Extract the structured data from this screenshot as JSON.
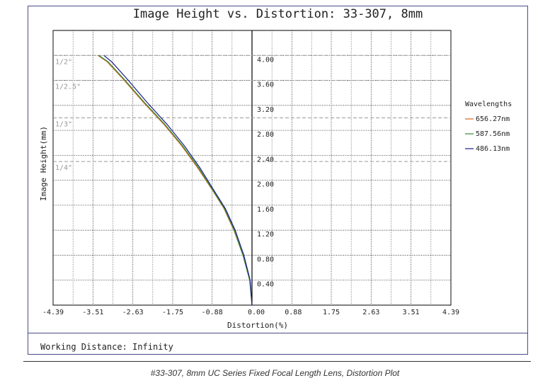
{
  "chart_data": {
    "type": "line",
    "title": "Image Height vs. Distortion: 33-307, 8mm",
    "xlabel": "Distortion(%)",
    "ylabel": "Image Height(mm)",
    "xlim": [
      -4.39,
      4.39
    ],
    "ylim": [
      0,
      4.4
    ],
    "x_ticks": [
      "-4.39",
      "-3.51",
      "-2.63",
      "-1.75",
      "-0.88",
      "0.00",
      "0.88",
      "1.75",
      "2.63",
      "3.51",
      "4.39"
    ],
    "y_ticks": [
      "4.00",
      "3.60",
      "3.20",
      "2.80",
      "2.40",
      "2.00",
      "1.60",
      "1.20",
      "0.80",
      "0.40"
    ],
    "y_tick_values": [
      4.0,
      3.6,
      3.2,
      2.8,
      2.4,
      2.0,
      1.6,
      1.2,
      0.8,
      0.4
    ],
    "sensor_formats": [
      {
        "label": "1/2\"",
        "height": 4.0
      },
      {
        "label": "1/2.5\"",
        "height": 3.6
      },
      {
        "label": "1/3\"",
        "height": 3.0
      },
      {
        "label": "1/4\"",
        "height": 2.3
      }
    ],
    "legend_title": "Wavelengths",
    "legend_position": "right",
    "series": [
      {
        "name": "656.27nm",
        "color": "#d2691e",
        "x": [
          0.0,
          -0.05,
          -0.2,
          -0.4,
          -0.62,
          -0.88,
          -1.2,
          -1.55,
          -1.95,
          -2.4,
          -2.82,
          -3.2,
          -3.4
        ],
        "y": [
          0.0,
          0.4,
          0.8,
          1.2,
          1.55,
          1.85,
          2.2,
          2.55,
          2.9,
          3.25,
          3.6,
          3.9,
          4.0
        ]
      },
      {
        "name": "587.56nm",
        "color": "#2e8b2e",
        "x": [
          0.0,
          -0.05,
          -0.2,
          -0.39,
          -0.61,
          -0.87,
          -1.18,
          -1.53,
          -1.93,
          -2.38,
          -2.8,
          -3.18,
          -3.38
        ],
        "y": [
          0.0,
          0.4,
          0.8,
          1.2,
          1.55,
          1.85,
          2.2,
          2.55,
          2.9,
          3.25,
          3.6,
          3.9,
          4.0
        ]
      },
      {
        "name": "486.13nm",
        "color": "#1c1c8c",
        "x": [
          0.0,
          -0.04,
          -0.18,
          -0.37,
          -0.59,
          -0.85,
          -1.15,
          -1.49,
          -1.88,
          -2.32,
          -2.73,
          -3.1,
          -3.27
        ],
        "y": [
          0.0,
          0.4,
          0.8,
          1.2,
          1.55,
          1.85,
          2.2,
          2.55,
          2.9,
          3.25,
          3.6,
          3.9,
          4.0
        ]
      }
    ],
    "grid": true
  },
  "footer": {
    "working_distance": "Working Distance: Infinity"
  },
  "caption": "#33-307, 8mm UC Series Fixed Focal Length Lens, Distortion Plot"
}
